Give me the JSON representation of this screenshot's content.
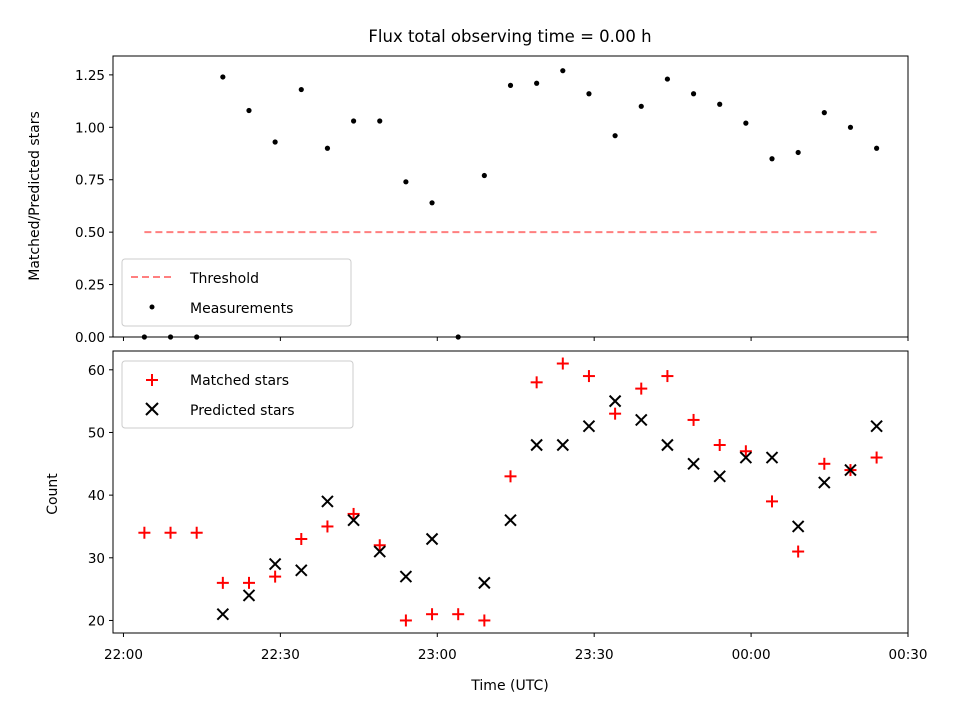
{
  "chart_data": [
    {
      "type": "scatter",
      "title": "Flux total observing time = 0.00 h",
      "xlabel": "",
      "ylabel": "Matched/Predicted stars",
      "xlim": [
        "21:58",
        "00:30"
      ],
      "ylim": [
        0,
        1.34
      ],
      "yticks": [
        "0.00",
        "0.25",
        "0.50",
        "0.75",
        "1.00",
        "1.25"
      ],
      "legend_position": "lower-left",
      "threshold": {
        "name": "Threshold",
        "y": 0.5,
        "x_start": "22:04",
        "x_end": "00:24",
        "color": "#ff7f7f",
        "style": "dashed"
      },
      "series": [
        {
          "name": "Measurements",
          "color": "#000000",
          "marker": "dot",
          "points": [
            [
              "22:04",
              0.0
            ],
            [
              "22:09",
              0.0
            ],
            [
              "22:14",
              0.0
            ],
            [
              "22:19",
              1.24
            ],
            [
              "22:24",
              1.08
            ],
            [
              "22:29",
              0.93
            ],
            [
              "22:34",
              1.18
            ],
            [
              "22:39",
              0.9
            ],
            [
              "22:44",
              1.03
            ],
            [
              "22:49",
              1.03
            ],
            [
              "22:54",
              0.74
            ],
            [
              "22:59",
              0.64
            ],
            [
              "23:04",
              0.0
            ],
            [
              "23:09",
              0.77
            ],
            [
              "23:14",
              1.2
            ],
            [
              "23:19",
              1.21
            ],
            [
              "23:24",
              1.27
            ],
            [
              "23:29",
              1.16
            ],
            [
              "23:34",
              0.96
            ],
            [
              "23:39",
              1.1
            ],
            [
              "23:44",
              1.23
            ],
            [
              "23:49",
              1.16
            ],
            [
              "23:54",
              1.11
            ],
            [
              "23:59",
              1.02
            ],
            [
              "00:04",
              0.85
            ],
            [
              "00:09",
              0.88
            ],
            [
              "00:14",
              1.07
            ],
            [
              "00:19",
              1.0
            ],
            [
              "00:24",
              0.9
            ]
          ]
        }
      ]
    },
    {
      "type": "scatter",
      "title": "",
      "xlabel": "Time (UTC)",
      "ylabel": "Count",
      "xlim": [
        "21:58",
        "00:30"
      ],
      "ylim": [
        18,
        63
      ],
      "xticks": [
        "22:00",
        "22:30",
        "23:00",
        "23:30",
        "00:00",
        "00:30"
      ],
      "yticks": [
        "20",
        "30",
        "40",
        "50",
        "60"
      ],
      "legend_position": "top-left",
      "series": [
        {
          "name": "Matched stars",
          "color": "#ff0000",
          "marker": "plus",
          "points": [
            [
              "22:04",
              34
            ],
            [
              "22:09",
              34
            ],
            [
              "22:14",
              34
            ],
            [
              "22:19",
              26
            ],
            [
              "22:24",
              26
            ],
            [
              "22:29",
              27
            ],
            [
              "22:34",
              33
            ],
            [
              "22:39",
              35
            ],
            [
              "22:44",
              37
            ],
            [
              "22:49",
              32
            ],
            [
              "22:54",
              20
            ],
            [
              "22:59",
              21
            ],
            [
              "23:04",
              21
            ],
            [
              "23:09",
              20
            ],
            [
              "23:14",
              43
            ],
            [
              "23:19",
              58
            ],
            [
              "23:24",
              61
            ],
            [
              "23:29",
              59
            ],
            [
              "23:34",
              53
            ],
            [
              "23:39",
              57
            ],
            [
              "23:44",
              59
            ],
            [
              "23:49",
              52
            ],
            [
              "23:54",
              48
            ],
            [
              "23:59",
              47
            ],
            [
              "00:04",
              39
            ],
            [
              "00:09",
              31
            ],
            [
              "00:14",
              45
            ],
            [
              "00:19",
              44
            ],
            [
              "00:24",
              46
            ]
          ]
        },
        {
          "name": "Predicted stars",
          "color": "#000000",
          "marker": "x",
          "points": [
            [
              "22:19",
              21
            ],
            [
              "22:24",
              24
            ],
            [
              "22:29",
              29
            ],
            [
              "22:34",
              28
            ],
            [
              "22:39",
              39
            ],
            [
              "22:44",
              36
            ],
            [
              "22:49",
              31
            ],
            [
              "22:54",
              27
            ],
            [
              "22:59",
              33
            ],
            [
              "23:09",
              26
            ],
            [
              "23:14",
              36
            ],
            [
              "23:19",
              48
            ],
            [
              "23:24",
              48
            ],
            [
              "23:29",
              51
            ],
            [
              "23:34",
              55
            ],
            [
              "23:39",
              52
            ],
            [
              "23:44",
              48
            ],
            [
              "23:49",
              45
            ],
            [
              "23:54",
              43
            ],
            [
              "23:59",
              46
            ],
            [
              "00:04",
              46
            ],
            [
              "00:09",
              35
            ],
            [
              "00:14",
              42
            ],
            [
              "00:19",
              44
            ],
            [
              "00:24",
              51
            ]
          ]
        }
      ]
    }
  ]
}
